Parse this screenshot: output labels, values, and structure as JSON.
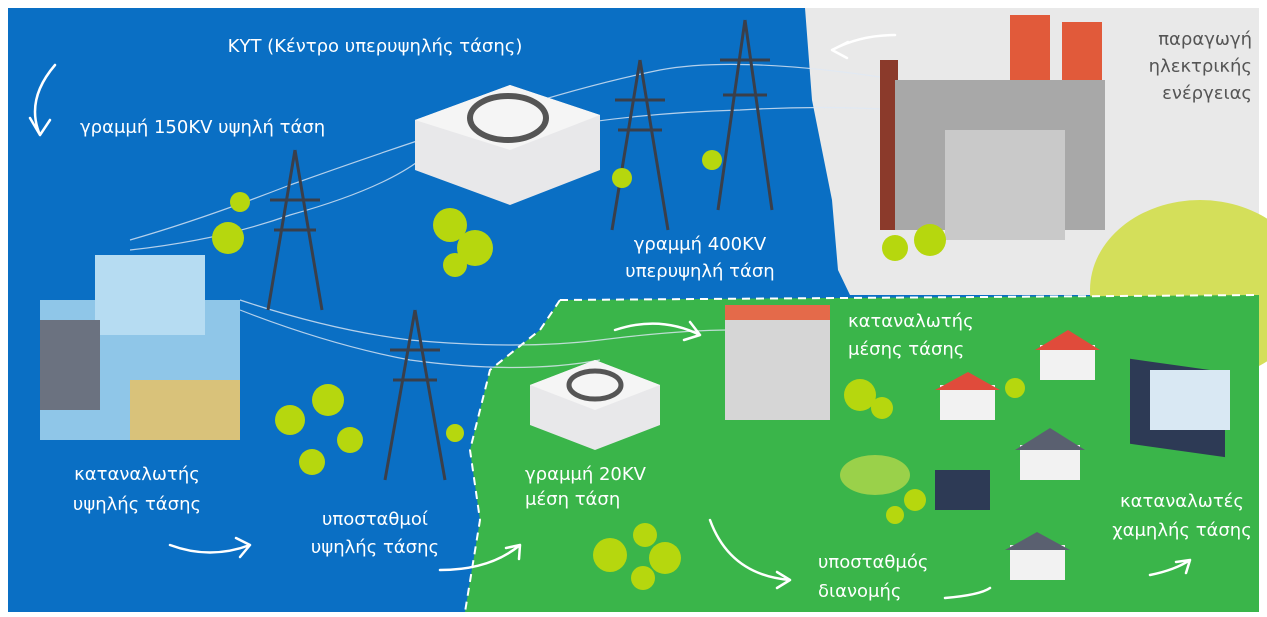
{
  "labels": [
    {
      "lines": [
        "ΚΥΤ (Κέντρο υπερυψηλής τάσης)"
      ]
    },
    {
      "lines": [
        "γραμμή 150KV υψηλή τάση"
      ]
    },
    {
      "lines": [
        "γραμμή 400KV",
        "υπερυψηλή τάση"
      ]
    },
    {
      "lines": [
        "παραγωγή",
        "ηλεκτρικής",
        "ενέργειας"
      ]
    },
    {
      "lines": [
        "καταναλωτής",
        "υψηλής τάσης"
      ]
    },
    {
      "lines": [
        "υποσταθμοί",
        "υψηλής τάσης"
      ]
    },
    {
      "lines": [
        "γραμμή 20KV",
        "μέση τάση"
      ]
    },
    {
      "lines": [
        "καταναλωτής",
        "μέσης τάσης"
      ]
    },
    {
      "lines": [
        "καταναλωτές",
        "χαμηλής τάσης"
      ]
    },
    {
      "lines": [
        "υποσταθμός",
        "διανομής"
      ]
    }
  ]
}
